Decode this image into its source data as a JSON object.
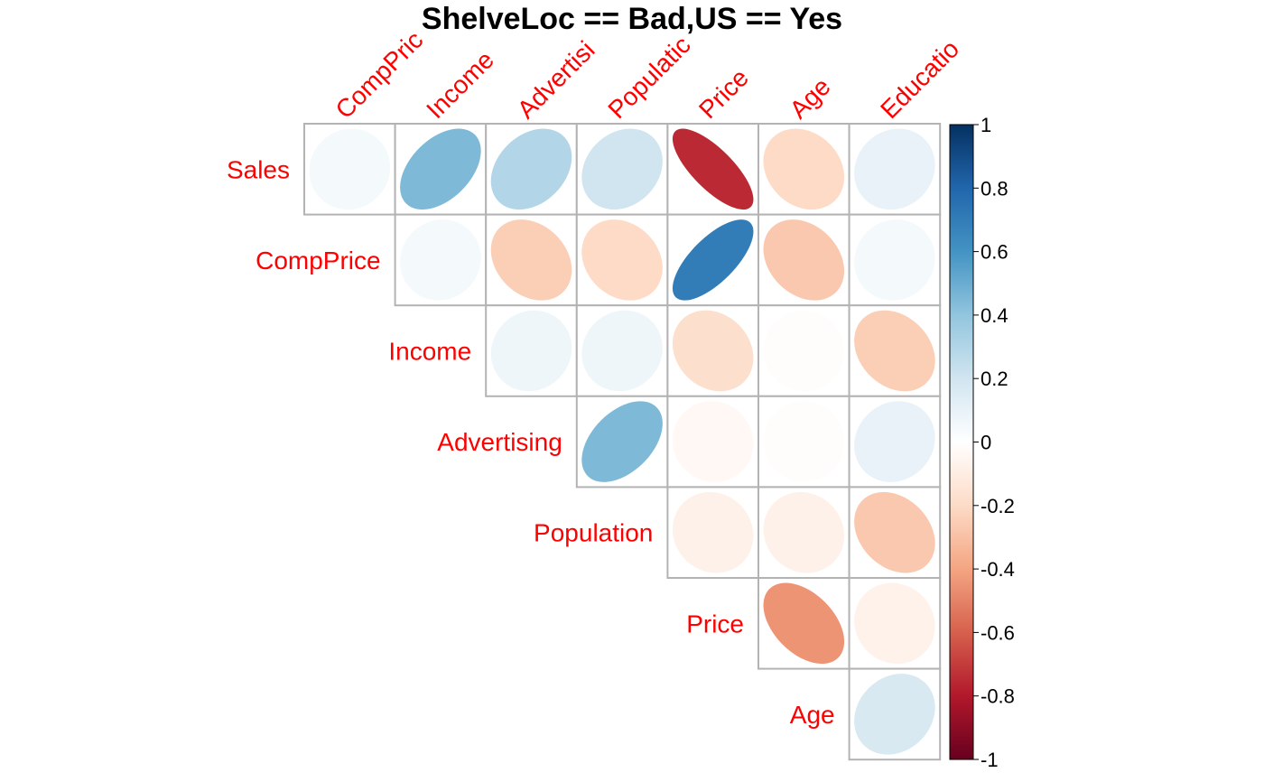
{
  "chart_data": {
    "type": "heatmap",
    "title": "ShelveLoc == Bad,US == Yes",
    "row_labels": [
      "Sales",
      "CompPrice",
      "Income",
      "Advertising",
      "Population",
      "Price",
      "Age"
    ],
    "col_labels": [
      "CompPrice",
      "Income",
      "Advertising",
      "Population",
      "Price",
      "Age",
      "Education"
    ],
    "col_labels_visible": [
      "CompPric",
      "Income",
      "Advertisi",
      "Populatic",
      "Price",
      "Age",
      "Educatio"
    ],
    "matrix": [
      [
        0.05,
        0.45,
        0.3,
        0.2,
        -0.75,
        -0.2,
        0.1
      ],
      [
        null,
        0.05,
        -0.25,
        -0.2,
        0.7,
        -0.27,
        0.05
      ],
      [
        null,
        null,
        0.07,
        0.07,
        -0.18,
        -0.01,
        -0.25
      ],
      [
        null,
        null,
        null,
        0.45,
        -0.04,
        -0.01,
        0.1
      ],
      [
        null,
        null,
        null,
        null,
        -0.08,
        -0.08,
        -0.27
      ],
      [
        null,
        null,
        null,
        null,
        null,
        -0.45,
        -0.07
      ],
      [
        null,
        null,
        null,
        null,
        null,
        null,
        0.17
      ]
    ],
    "colorbar": {
      "range": [
        -1,
        1
      ],
      "ticks": [
        "1",
        "0.8",
        "0.6",
        "0.4",
        "0.2",
        "0",
        "-0.2",
        "-0.4",
        "-0.6",
        "-0.8",
        "-1"
      ]
    },
    "method": "ellipse",
    "triangle": "upper",
    "label_color": "#ff0000",
    "grid_color": "#b3b3b3"
  }
}
